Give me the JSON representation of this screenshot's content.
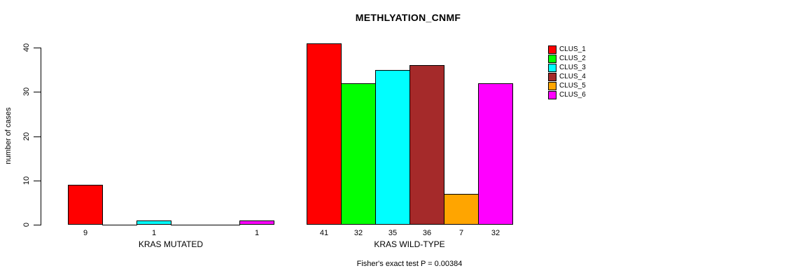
{
  "chart_data": {
    "type": "bar",
    "title": "METHLYATION_CNMF",
    "ylabel": "number of cases",
    "xlabel": "",
    "annotation": "Fisher's exact test P = 0.00384",
    "series_names": [
      "CLUS_1",
      "CLUS_2",
      "CLUS_3",
      "CLUS_4",
      "CLUS_5",
      "CLUS_6"
    ],
    "series_colors": [
      "#FF0000",
      "#00FF00",
      "#00FFFF",
      "#A52A2A",
      "#FFA500",
      "#FF00FF"
    ],
    "groups": [
      {
        "label": "KRAS MUTATED",
        "values": [
          9,
          0,
          1,
          0,
          0,
          1
        ]
      },
      {
        "label": "KRAS WILD-TYPE",
        "values": [
          41,
          32,
          35,
          36,
          7,
          32
        ]
      }
    ],
    "ylim": [
      0,
      40
    ],
    "yticks": [
      0,
      10,
      20,
      30,
      40
    ],
    "grid": "off",
    "legend_position": "topright",
    "value_labels_shown_for_nonzero_bars": true
  }
}
